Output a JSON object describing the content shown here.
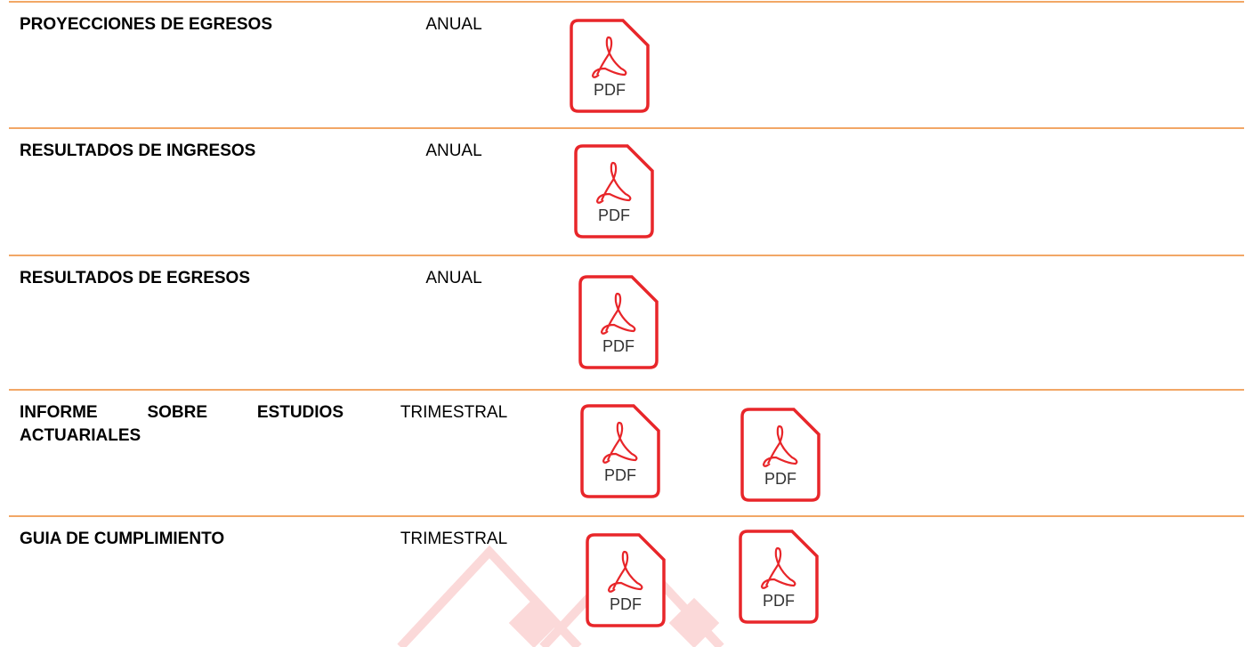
{
  "table": {
    "rows": [
      {
        "name": "PROYECCIONES DE EGRESOS",
        "frequency": "ANUAL",
        "files": [
          "PDF"
        ]
      },
      {
        "name": "RESULTADOS DE INGRESOS",
        "frequency": "ANUAL",
        "files": [
          "PDF"
        ]
      },
      {
        "name": "RESULTADOS DE EGRESOS",
        "frequency": "ANUAL",
        "files": [
          "PDF"
        ]
      },
      {
        "name": "INFORME SOBRE ESTUDIOS ACTUARIALES",
        "frequency": "TRIMESTRAL",
        "files": [
          "PDF",
          "PDF"
        ]
      },
      {
        "name": "GUIA DE CUMPLIMIENTO",
        "frequency": "TRIMESTRAL",
        "files": [
          "PDF",
          "PDF"
        ]
      }
    ]
  }
}
